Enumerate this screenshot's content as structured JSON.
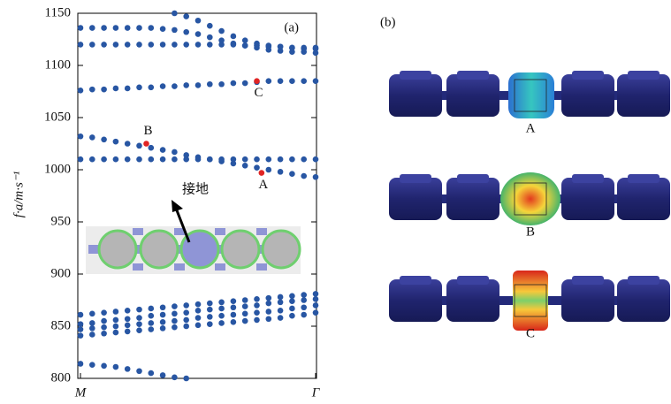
{
  "chart_data": {
    "type": "scatter",
    "panel_label": "(a)",
    "y_label": "f·a/m·s⁻¹",
    "inset_label": "接地",
    "x": [
      0,
      0.05,
      0.1,
      0.15,
      0.2,
      0.25,
      0.3,
      0.35,
      0.4,
      0.45,
      0.5,
      0.55,
      0.6,
      0.65,
      0.7,
      0.75,
      0.8,
      0.85,
      0.9,
      0.95,
      1
    ],
    "xlim": [
      0,
      1
    ],
    "xticks": [
      {
        "value": 0,
        "label": "M"
      },
      {
        "value": 1,
        "label": "Γ"
      }
    ],
    "ylim": [
      800,
      1150
    ],
    "yticks": [
      800,
      850,
      900,
      950,
      1000,
      1050,
      1100,
      1150
    ],
    "series": [
      {
        "color": "#2856a3",
        "values": [
          1136,
          1136,
          1136,
          1136,
          1136,
          1136,
          1136,
          1135,
          1134,
          1132,
          1130,
          1127,
          1124,
          1121,
          1119,
          1117,
          1115,
          1114,
          1113,
          1113,
          1112
        ]
      },
      {
        "color": "#2856a3",
        "values": [
          1120,
          1120,
          1120,
          1120,
          1120,
          1120,
          1120,
          1120,
          1120,
          1120,
          1120,
          1120,
          1120,
          1120,
          1119,
          1119,
          1118,
          1118,
          1117,
          1117,
          1117
        ]
      },
      {
        "color": "#2856a3",
        "values": [
          null,
          null,
          null,
          null,
          null,
          null,
          null,
          null,
          1150,
          1147,
          1143,
          1138,
          1133,
          1128,
          1124,
          1121,
          1119,
          1118,
          1117,
          1116,
          1116
        ]
      },
      {
        "color": "#2856a3",
        "values": [
          1076,
          1077,
          1077,
          1078,
          1078,
          1079,
          1079,
          1080,
          1080,
          1081,
          1081,
          1082,
          1082,
          1083,
          1083,
          1084,
          1085,
          1085,
          1085,
          1085,
          1085
        ]
      },
      {
        "color": "#2856a3",
        "values": [
          1032,
          1031,
          1029,
          1027,
          1025,
          1023,
          1021,
          1019,
          1017,
          1014,
          1012,
          1010,
          1008,
          1006,
          1004,
          1002,
          1000,
          998,
          996,
          994,
          993
        ]
      },
      {
        "color": "#2856a3",
        "values": [
          1010,
          1010,
          1010,
          1010,
          1010,
          1010,
          1010,
          1010,
          1010,
          1010,
          1010,
          1010,
          1010,
          1010,
          1010,
          1010,
          1010,
          1010,
          1010,
          1010,
          1010
        ]
      },
      {
        "color": "#2856a3",
        "values": [
          861,
          862,
          863,
          864,
          865,
          866,
          867,
          868,
          869,
          870,
          871,
          872,
          873,
          874,
          875,
          876,
          877,
          878,
          879,
          880,
          881
        ]
      },
      {
        "color": "#2856a3",
        "values": [
          852,
          853,
          855,
          856,
          857,
          858,
          860,
          861,
          862,
          863,
          865,
          866,
          867,
          868,
          869,
          870,
          872,
          873,
          874,
          875,
          876
        ]
      },
      {
        "color": "#2856a3",
        "values": [
          847,
          848,
          849,
          850,
          851,
          852,
          853,
          854,
          855,
          856,
          858,
          859,
          860,
          861,
          862,
          863,
          864,
          865,
          867,
          868,
          870
        ]
      },
      {
        "color": "#2856a3",
        "values": [
          841,
          842,
          843,
          844,
          845,
          846,
          847,
          848,
          849,
          850,
          851,
          852,
          853,
          854,
          855,
          856,
          857,
          858,
          860,
          861,
          863
        ]
      },
      {
        "color": "#2856a3",
        "values": [
          814,
          813,
          812,
          811,
          809,
          807,
          805,
          803,
          801,
          800,
          null,
          null,
          null,
          null,
          null,
          null,
          null,
          null,
          null,
          null,
          null
        ]
      },
      {
        "color": "#e02424",
        "x": [
          0.28,
          0.75,
          0.77
        ],
        "values": [
          1025,
          1085,
          997
        ],
        "point_labels": [
          "B",
          "C",
          "A"
        ]
      }
    ]
  },
  "panel_b": {
    "label": "(b)",
    "modes": [
      "A",
      "B",
      "C"
    ]
  }
}
